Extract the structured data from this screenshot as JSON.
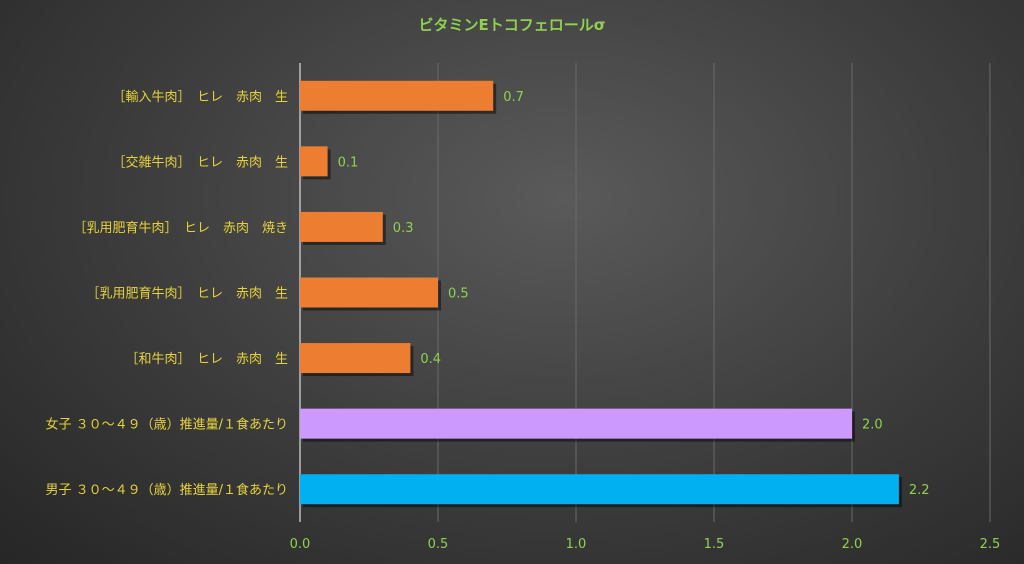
{
  "chart_data": {
    "type": "bar",
    "orientation": "horizontal",
    "title": "ビタミンEトコフェロールσ",
    "categories": [
      "［輸入牛肉］　ヒレ　赤肉　生",
      "［交雑牛肉］　ヒレ　赤肉　生",
      "［乳用肥育牛肉］　ヒレ　赤肉　焼き",
      "［乳用肥育牛肉］　ヒレ　赤肉　生",
      "［和牛肉］　ヒレ　赤肉　生",
      "女子 ３０～４９（歳）推進量/１食あたり",
      "男子 ３０～４９（歳）推進量/１食あたり"
    ],
    "values": [
      0.7,
      0.1,
      0.3,
      0.5,
      0.4,
      2.0,
      2.17
    ],
    "data_labels": [
      "0.7",
      "0.1",
      "0.3",
      "0.5",
      "0.4",
      "2.0",
      "2.2"
    ],
    "colors": [
      "#ed7d31",
      "#ed7d31",
      "#ed7d31",
      "#ed7d31",
      "#ed7d31",
      "#cc99ff",
      "#00b0f0"
    ],
    "xlim": [
      0,
      2.5
    ],
    "xticks": [
      "0.0",
      "0.5",
      "1.0",
      "1.5",
      "2.0",
      "2.5"
    ],
    "grid": true,
    "xlabel": "",
    "ylabel": ""
  }
}
